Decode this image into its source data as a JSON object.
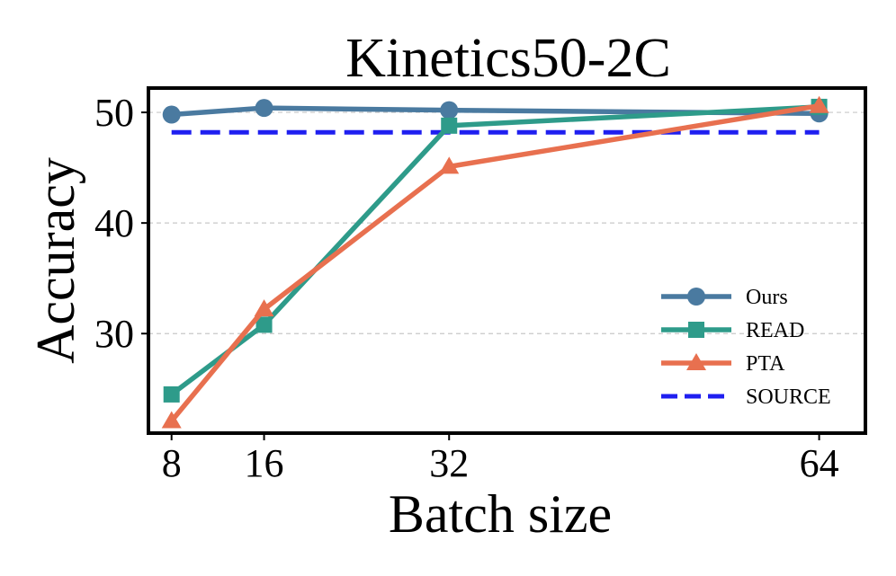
{
  "chart_data": {
    "type": "line",
    "title": "Kinetics50-2C",
    "xlabel": "Batch size",
    "ylabel": "Accuracy",
    "x": [
      8,
      16,
      32,
      64
    ],
    "x_tick_labels": [
      "8",
      "16",
      "32",
      "64"
    ],
    "xlim": [
      6,
      68
    ],
    "ylim": [
      21,
      52.2
    ],
    "yticks": [
      30,
      40,
      50
    ],
    "y_tick_labels": [
      "30",
      "40",
      "50"
    ],
    "grid": "horizontal dashed",
    "legend_position": "lower-right",
    "series": [
      {
        "name": "Ours",
        "values": [
          49.8,
          50.4,
          50.2,
          49.9
        ],
        "color": "#4a7aa0",
        "marker": "circle",
        "style": "solid"
      },
      {
        "name": "READ",
        "values": [
          24.5,
          30.8,
          48.8,
          50.5
        ],
        "color": "#2e9b8a",
        "marker": "square",
        "style": "solid"
      },
      {
        "name": "PTA",
        "values": [
          22.1,
          32.2,
          45.1,
          50.6
        ],
        "color": "#e8704f",
        "marker": "triangle",
        "style": "solid"
      },
      {
        "name": "SOURCE",
        "values": [
          48.2,
          48.2,
          48.2,
          48.2
        ],
        "color": "#1f1ff0",
        "marker": "none",
        "style": "dashed"
      }
    ]
  }
}
